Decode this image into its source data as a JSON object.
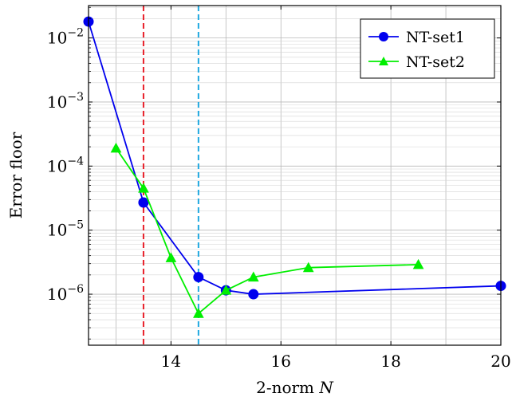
{
  "chart_data": {
    "type": "line",
    "xlabel": "2-norm N",
    "ylabel": "Error floor",
    "xlim": [
      12.5,
      20
    ],
    "ylim": [
      1.6e-07,
      0.032
    ],
    "yscale": "log",
    "grid": true,
    "legend_position": "top-right",
    "x_ticks": [
      14,
      16,
      18,
      20
    ],
    "x_tick_labels": [
      "14",
      "16",
      "18",
      "20"
    ],
    "y_ticks": [
      1e-06,
      1e-05,
      0.0001,
      0.001,
      0.01
    ],
    "y_tick_labels": [
      {
        "base": "10",
        "exp": "−6"
      },
      {
        "base": "10",
        "exp": "−5"
      },
      {
        "base": "10",
        "exp": "−4"
      },
      {
        "base": "10",
        "exp": "−3"
      },
      {
        "base": "10",
        "exp": "−2"
      }
    ],
    "vlines": [
      {
        "x": 13.5,
        "color": "#e8202a",
        "style": "dashed"
      },
      {
        "x": 14.5,
        "color": "#1fa8e0",
        "style": "dashed"
      }
    ],
    "series": [
      {
        "name": "NT-set1",
        "color": "#0000ee",
        "marker": "circle",
        "x": [
          12.5,
          13.5,
          14.5,
          15.0,
          15.5,
          20.0
        ],
        "y": [
          0.018,
          2.7e-05,
          1.85e-06,
          1.15e-06,
          1e-06,
          1.35e-06
        ]
      },
      {
        "name": "NT-set2",
        "color": "#00ee00",
        "marker": "triangle",
        "x": [
          13.0,
          13.5,
          14.0,
          14.5,
          15.0,
          15.5,
          16.5,
          18.5
        ],
        "y": [
          0.00019,
          4.5e-05,
          3.7e-06,
          5e-07,
          1.15e-06,
          1.85e-06,
          2.6e-06,
          2.9e-06
        ]
      }
    ]
  }
}
